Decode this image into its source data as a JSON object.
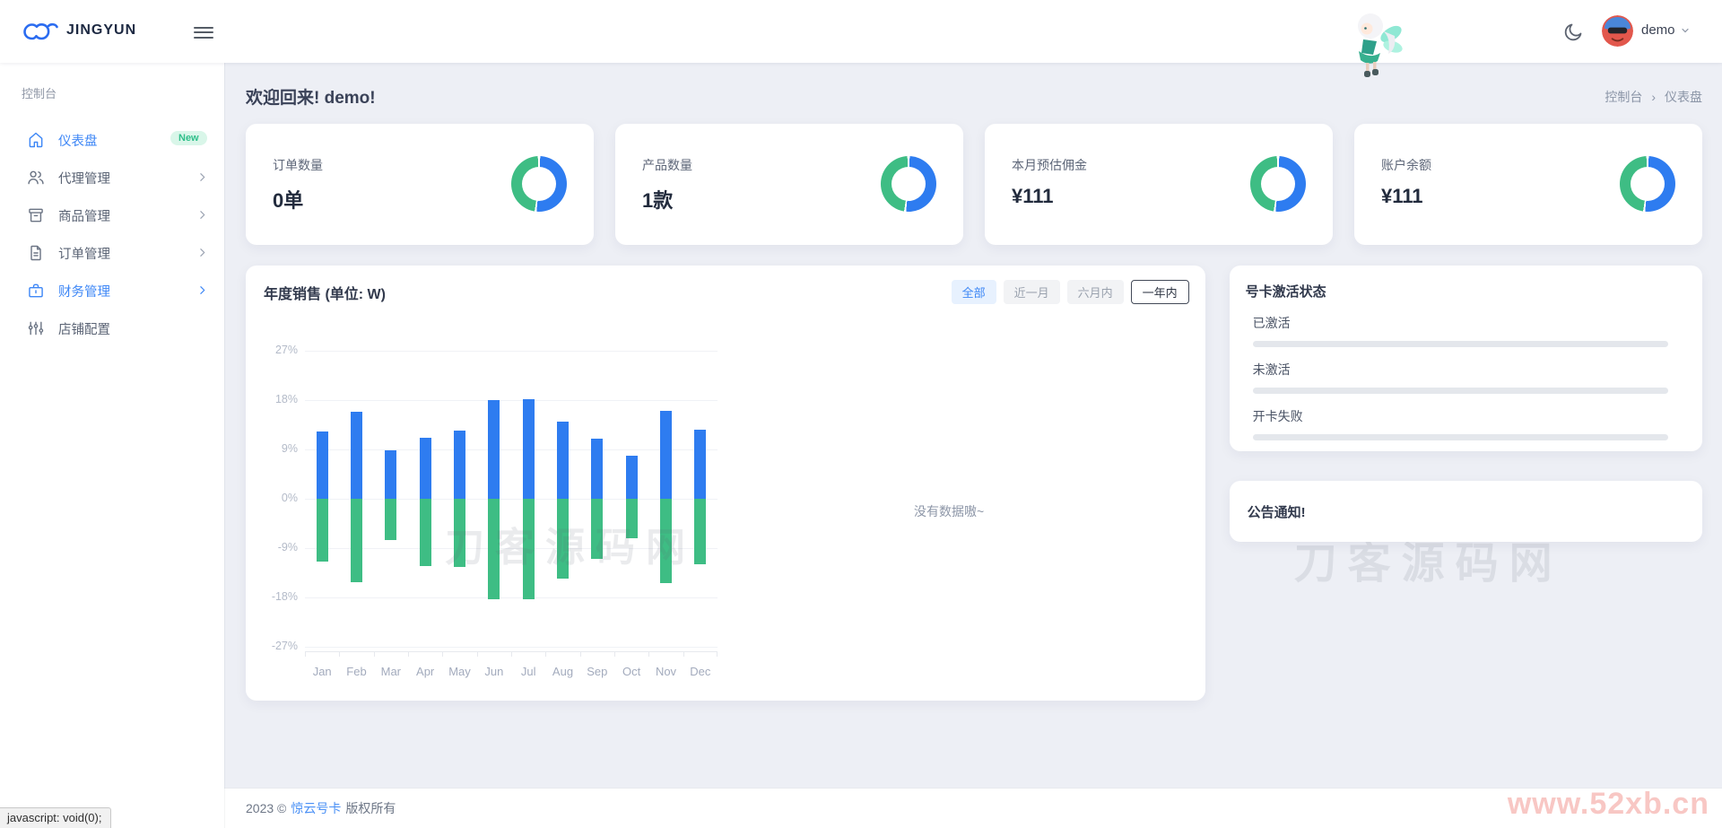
{
  "header": {
    "brand": "JINGYUN",
    "user": "demo"
  },
  "sidebar": {
    "section": "控制台",
    "items": [
      {
        "label": "仪表盘",
        "icon": "home-icon",
        "badge": "New",
        "active": true
      },
      {
        "label": "代理管理",
        "icon": "users-icon",
        "expandable": true
      },
      {
        "label": "商品管理",
        "icon": "box-icon",
        "expandable": true
      },
      {
        "label": "订单管理",
        "icon": "file-icon",
        "expandable": true
      },
      {
        "label": "财务管理",
        "icon": "briefcase-icon",
        "expandable": true,
        "active": true
      },
      {
        "label": "店铺配置",
        "icon": "sliders-icon"
      }
    ]
  },
  "page": {
    "welcome": "欢迎回来! demo!",
    "breadcrumb": [
      "控制台",
      "仪表盘"
    ],
    "breadcrumb_separator": "›"
  },
  "stat_cards": [
    {
      "label": "订单数量",
      "value": "0单"
    },
    {
      "label": "产品数量",
      "value": "1款"
    },
    {
      "label": "本月预估佣金",
      "value": "¥111"
    },
    {
      "label": "账户余额",
      "value": "¥111"
    }
  ],
  "chart_card": {
    "title": "年度销售 (单位: W)",
    "filters": [
      {
        "label": "全部",
        "state": "active"
      },
      {
        "label": "近一月",
        "state": "default"
      },
      {
        "label": "六月内",
        "state": "default"
      },
      {
        "label": "一年内",
        "state": "outlined"
      }
    ],
    "empty_text": "没有数据嗷~"
  },
  "chart_data": {
    "type": "bar",
    "title": "年度销售 (单位: W)",
    "categories": [
      "Jan",
      "Feb",
      "Mar",
      "Apr",
      "May",
      "Jun",
      "Jul",
      "Aug",
      "Sep",
      "Oct",
      "Nov",
      "Dec"
    ],
    "series": [
      {
        "name": "positive",
        "color": "#2e7cf0",
        "values": [
          12.3,
          15.9,
          8.8,
          11.2,
          12.4,
          18.0,
          18.1,
          14.0,
          10.9,
          7.9,
          16.0,
          12.6
        ]
      },
      {
        "name": "negative",
        "color": "#3ebd84",
        "values": [
          -11.5,
          -15.2,
          -7.5,
          -12.3,
          -12.4,
          -18.3,
          -18.3,
          -14.5,
          -11.0,
          -7.2,
          -15.3,
          -11.9
        ]
      }
    ],
    "ylim": [
      -27,
      27
    ],
    "yticks": [
      "27%",
      "18%",
      "9%",
      "0%",
      "-9%",
      "-18%",
      "-27%"
    ],
    "xlabel": "",
    "ylabel": "%",
    "grid": true,
    "legend": false
  },
  "activation_card": {
    "title": "号卡激活状态",
    "items": [
      {
        "label": "已激活"
      },
      {
        "label": "未激活"
      },
      {
        "label": "开卡失败"
      }
    ]
  },
  "notice_card": {
    "title": "公告通知!"
  },
  "footer": {
    "copy_prefix": "2023 ©",
    "brand": "惊云号卡",
    "copy_suffix": "版权所有"
  },
  "watermarks": {
    "main": "刀客源码网",
    "side": "刀客源码网",
    "corner": "www.52xb.cn"
  },
  "statusbar": {
    "text": "javascript: void(0);"
  },
  "colors": {
    "accent_blue": "#2e7cf0",
    "accent_green": "#3ebd84",
    "active_menu": "#3e87f6",
    "badge_bg": "#d9f6e9",
    "badge_text": "#2fbf8a",
    "main_bg": "#edeff5",
    "corner_watermark": "#f8c7c4"
  }
}
